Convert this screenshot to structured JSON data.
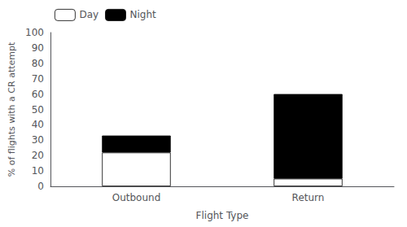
{
  "chart_data": {
    "type": "bar",
    "xlabel": "Flight Type",
    "ylabel": "% of flights with a CR attempt",
    "categories": [
      "Outbound",
      "Return"
    ],
    "series": [
      {
        "name": "Day",
        "color": "#ffffff",
        "values": [
          22,
          5
        ]
      },
      {
        "name": "Night",
        "color": "#000000",
        "values": [
          11,
          55
        ]
      }
    ],
    "stacked": true,
    "ylim": [
      0,
      100
    ],
    "yticks": [
      0,
      10,
      20,
      30,
      40,
      50,
      60,
      70,
      80,
      90,
      100
    ],
    "grid": false,
    "legend": "upper left"
  }
}
